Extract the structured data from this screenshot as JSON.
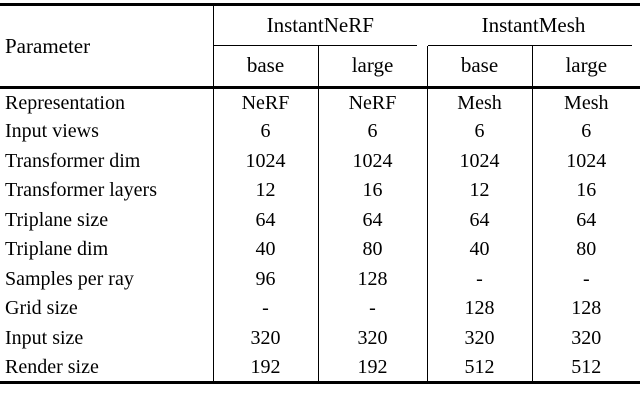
{
  "table": {
    "param_header": "Parameter",
    "groups": [
      {
        "label": "InstantNeRF",
        "subcols": [
          "base",
          "large"
        ]
      },
      {
        "label": "InstantMesh",
        "subcols": [
          "base",
          "large"
        ]
      }
    ],
    "rows": [
      {
        "param": "Representation",
        "values": [
          "NeRF",
          "NeRF",
          "Mesh",
          "Mesh"
        ]
      },
      {
        "param": "Input views",
        "values": [
          "6",
          "6",
          "6",
          "6"
        ]
      },
      {
        "param": "Transformer dim",
        "values": [
          "1024",
          "1024",
          "1024",
          "1024"
        ]
      },
      {
        "param": "Transformer layers",
        "values": [
          "12",
          "16",
          "12",
          "16"
        ]
      },
      {
        "param": "Triplane size",
        "values": [
          "64",
          "64",
          "64",
          "64"
        ]
      },
      {
        "param": "Triplane dim",
        "values": [
          "40",
          "80",
          "40",
          "80"
        ]
      },
      {
        "param": "Samples per ray",
        "values": [
          "96",
          "128",
          "-",
          "-"
        ]
      },
      {
        "param": "Grid size",
        "values": [
          "-",
          "-",
          "128",
          "128"
        ]
      },
      {
        "param": "Input size",
        "values": [
          "320",
          "320",
          "320",
          "320"
        ]
      },
      {
        "param": "Render size",
        "values": [
          "192",
          "192",
          "512",
          "512"
        ]
      }
    ],
    "colors": {
      "text": "#000000",
      "rule": "#000000",
      "background": "#ffffff"
    }
  }
}
